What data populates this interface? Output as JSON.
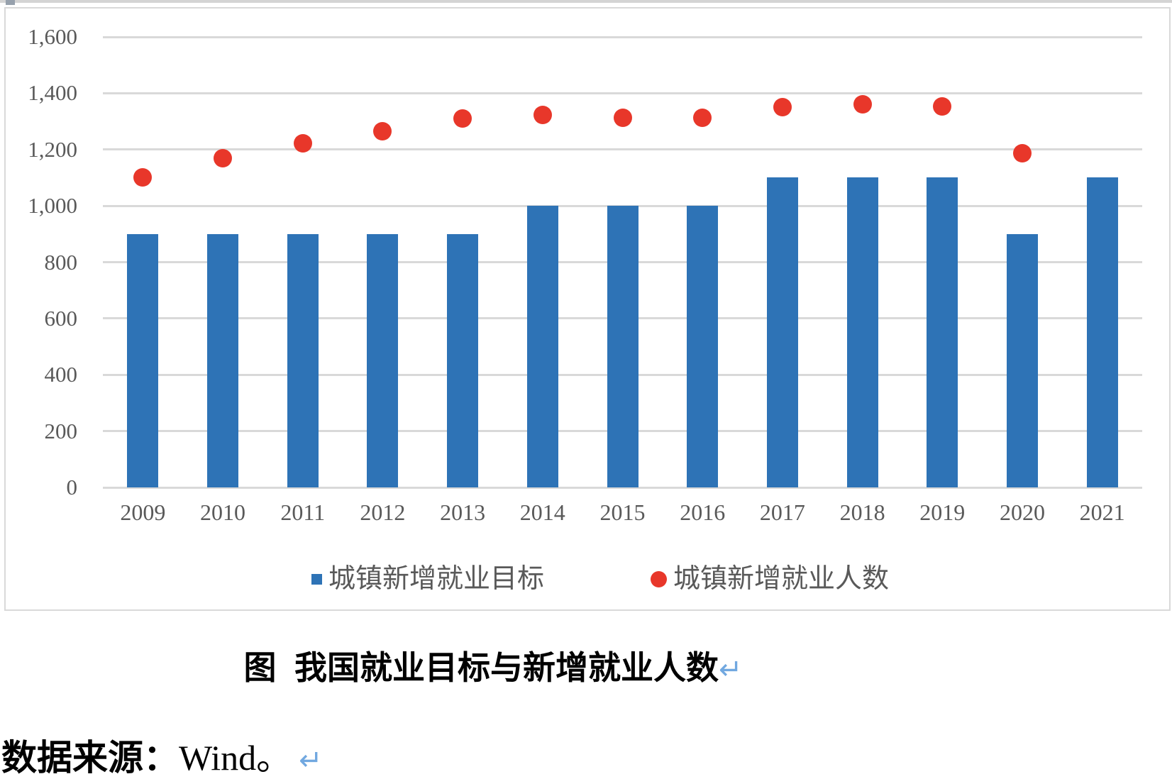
{
  "chart_data": {
    "type": "combo",
    "categories": [
      "2009",
      "2010",
      "2011",
      "2012",
      "2013",
      "2014",
      "2015",
      "2016",
      "2017",
      "2018",
      "2019",
      "2020",
      "2021"
    ],
    "series": [
      {
        "name": "城镇新增就业目标",
        "type": "bar",
        "color": "#2e73b6",
        "values": [
          900,
          900,
          900,
          900,
          900,
          1000,
          1000,
          1000,
          1100,
          1100,
          1100,
          900,
          1100
        ]
      },
      {
        "name": "城镇新增就业人数",
        "type": "scatter",
        "color": "#e8372a",
        "values": [
          1102,
          1168,
          1221,
          1266,
          1310,
          1322,
          1312,
          1314,
          1351,
          1361,
          1352,
          1186,
          null
        ]
      }
    ],
    "ylim": [
      0,
      1600
    ],
    "ytick_step": 200,
    "ytick_labels": [
      "0",
      "200",
      "400",
      "600",
      "800",
      "1,000",
      "1,200",
      "1,400",
      "1,600"
    ],
    "grid": true,
    "legend_position": "bottom"
  },
  "caption": {
    "text": "图  我国就业目标与新增就业人数",
    "return_mark": "↵"
  },
  "source": {
    "label_zh": "数据来源：",
    "label_latin": "Wind。",
    "return_mark": "↵"
  },
  "colors": {
    "bar_blue": "#2e73b6",
    "dot_red": "#e8372a",
    "gridline": "#d9d9d9",
    "axis_text": "#595959"
  }
}
